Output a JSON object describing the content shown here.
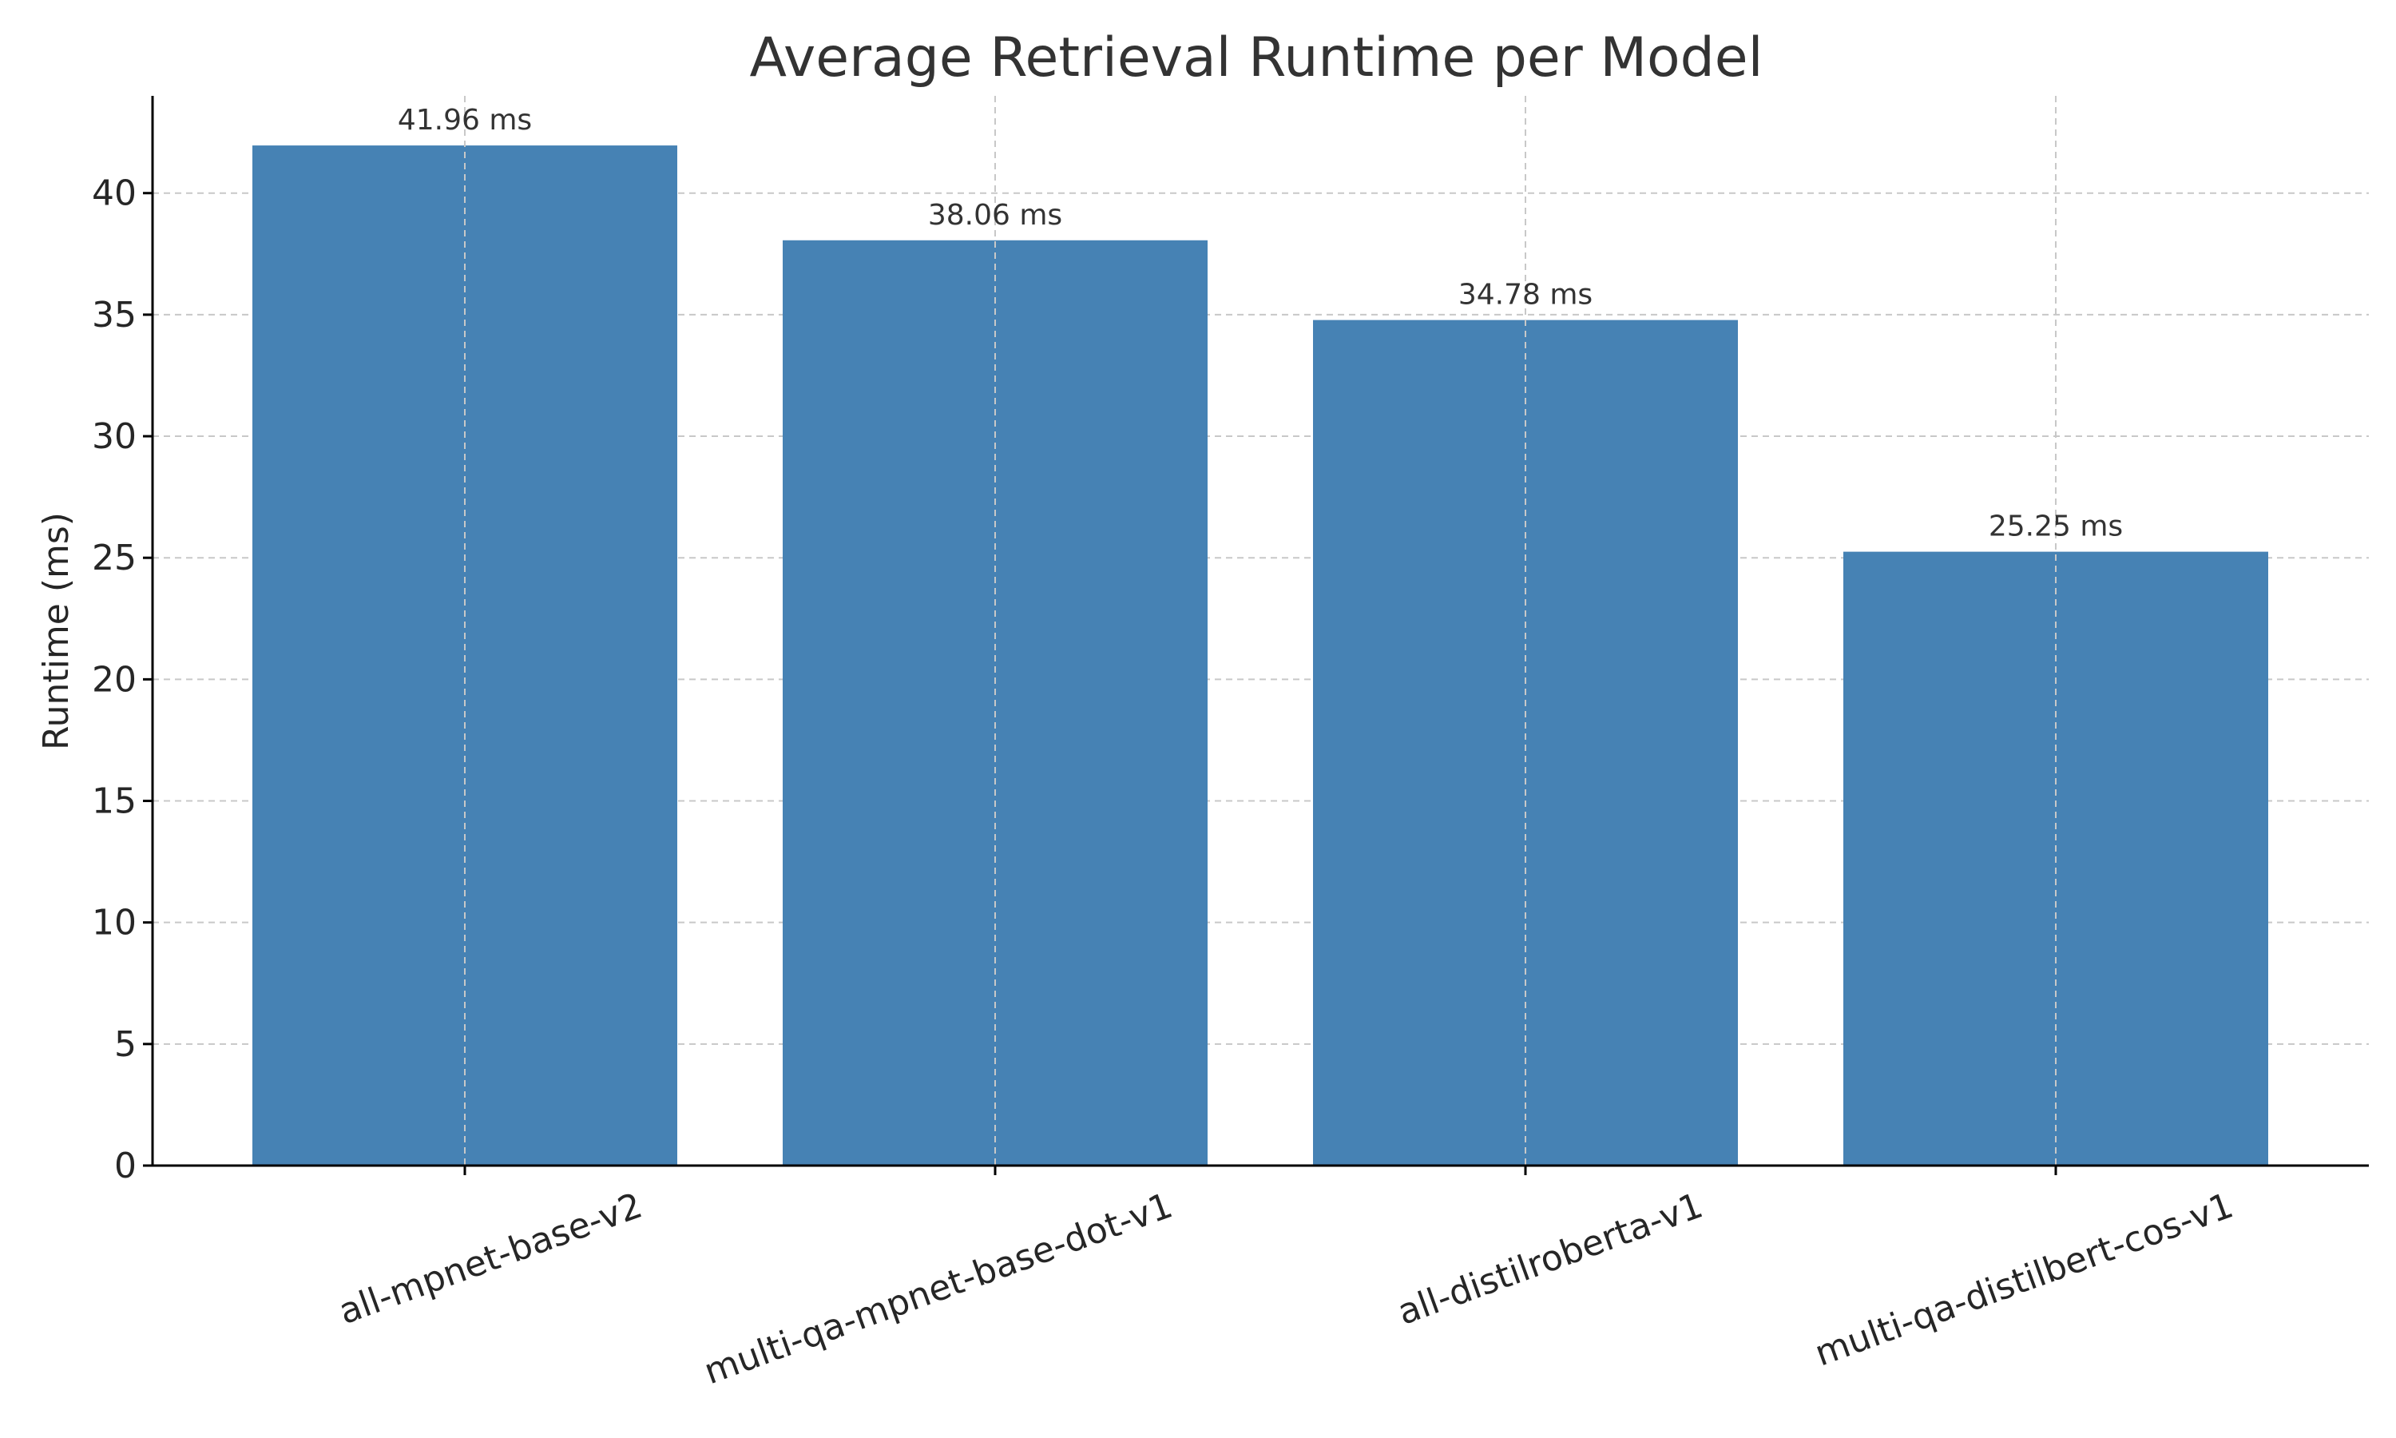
{
  "chart_data": {
    "type": "bar",
    "title": "Average Retrieval Runtime per Model",
    "xlabel": "",
    "ylabel": "Runtime (ms)",
    "categories": [
      "all-mpnet-base-v2",
      "multi-qa-mpnet-base-dot-v1",
      "all-distilroberta-v1",
      "multi-qa-distilbert-cos-v1"
    ],
    "values": [
      41.96,
      38.06,
      34.78,
      25.25
    ],
    "data_labels": [
      "41.96 ms",
      "38.06 ms",
      "34.78 ms",
      "25.25 ms"
    ],
    "ylim": [
      0,
      44
    ],
    "yticks": [
      0,
      5,
      10,
      15,
      20,
      25,
      30,
      35,
      40
    ],
    "ytick_labels": [
      "0",
      "5",
      "10",
      "15",
      "20",
      "25",
      "30",
      "35",
      "40"
    ],
    "grid": true,
    "bar_color": "#4682b4",
    "xtick_rotation": "rotated ~20°"
  }
}
